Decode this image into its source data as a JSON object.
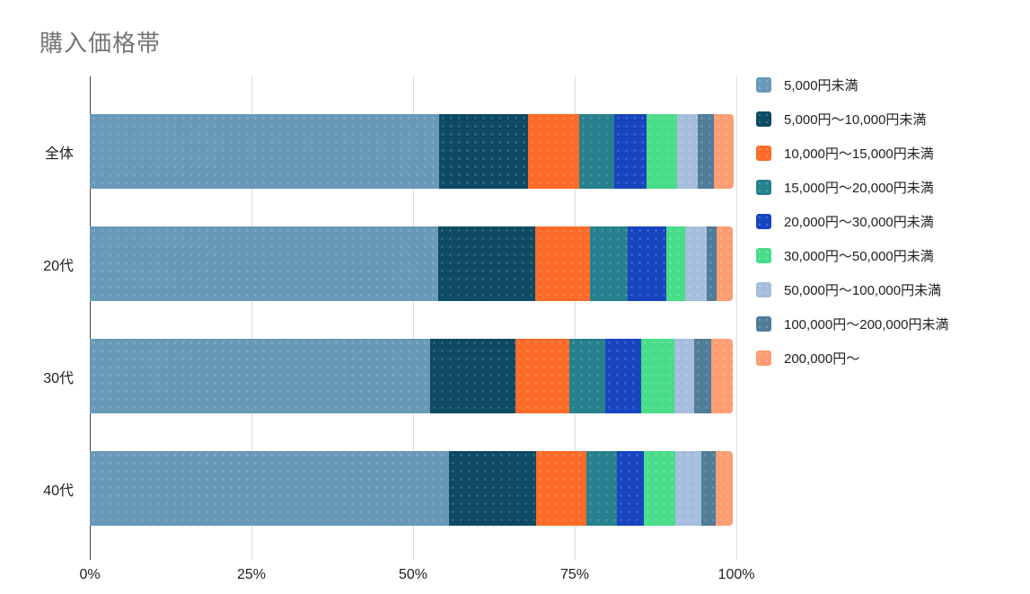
{
  "title": "購入価格帯",
  "chart_data": {
    "type": "bar",
    "orientation": "horizontal",
    "stacked": true,
    "title": "購入価格帯",
    "categories": [
      "全体",
      "20代",
      "30代",
      "40代"
    ],
    "series": [
      {
        "name": "5,000円未満",
        "color": "#6999b8",
        "values": [
          54.0,
          53.9,
          52.6,
          55.5
        ]
      },
      {
        "name": "5,000円～10,000円未満",
        "color": "#0d4a63",
        "values": [
          13.8,
          15.0,
          13.2,
          13.5
        ]
      },
      {
        "name": "10,000円～15,000円未満",
        "color": "#fd6b29",
        "values": [
          7.9,
          8.5,
          8.3,
          7.8
        ]
      },
      {
        "name": "15,000円～20,000円未満",
        "color": "#26808e",
        "values": [
          5.4,
          5.8,
          5.6,
          4.7
        ]
      },
      {
        "name": "20,000円～30,000円未満",
        "color": "#1745bf",
        "values": [
          5.0,
          6.0,
          5.6,
          4.2
        ]
      },
      {
        "name": "30,000円～50,000円未満",
        "color": "#49dd8a",
        "values": [
          4.7,
          2.9,
          5.1,
          4.9
        ]
      },
      {
        "name": "50,000円～100,000円未満",
        "color": "#a6bedd",
        "values": [
          3.3,
          3.3,
          3.1,
          4.0
        ]
      },
      {
        "name": "100,000円～200,000円未満",
        "color": "#507d99",
        "values": [
          2.5,
          1.5,
          2.6,
          2.2
        ]
      },
      {
        "name": "200,000円～",
        "color": "#fd9d74",
        "values": [
          3.0,
          2.5,
          3.4,
          2.6
        ]
      }
    ],
    "x_ticks": [
      "0%",
      "25%",
      "50%",
      "75%",
      "100%"
    ],
    "xlim": [
      0,
      100
    ],
    "grid": true,
    "legend_position": "right",
    "axis_color": "#424242",
    "gridline_color": "#dadce0",
    "title_color": "#757575"
  }
}
